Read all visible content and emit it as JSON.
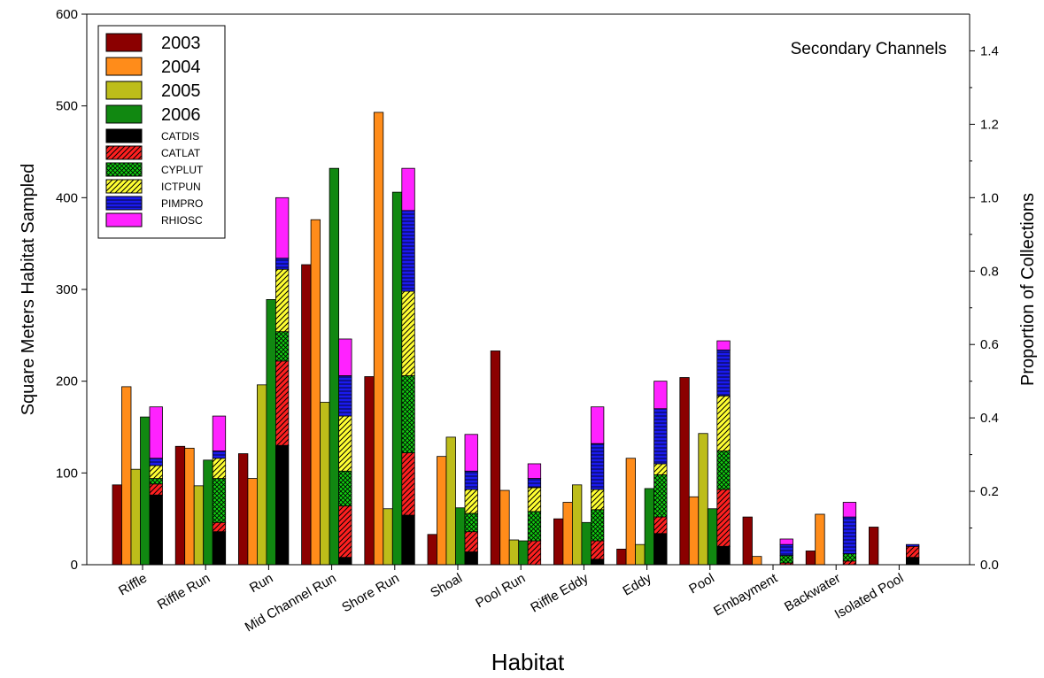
{
  "chart_data": {
    "type": "bar",
    "annotation": "Secondary Channels",
    "xlabel": "Habitat",
    "ylabel": "Square Meters Habitat Sampled",
    "ylabel_right": "Proportion of Collections",
    "ylim": [
      0,
      600
    ],
    "yticks": [
      "0",
      "100",
      "200",
      "300",
      "400",
      "500",
      "600"
    ],
    "ylim_right": [
      0,
      1.5
    ],
    "yticks_right": [
      "0.0",
      "0.2",
      "0.4",
      "0.6",
      "0.8",
      "1.0",
      "1.2",
      "1.4"
    ],
    "categories": [
      "Riffle",
      "Riffle Run",
      "Run",
      "Mid Channel Run",
      "Shore Run",
      "Shoal",
      "Pool Run",
      "Riffle Eddy",
      "Eddy",
      "Pool",
      "Embayment",
      "Backwater",
      "Isolated Pool"
    ],
    "series": [
      {
        "name": "2003",
        "axis": "left",
        "color": "#8b0000",
        "values": [
          87,
          129,
          121,
          327,
          205,
          33,
          233,
          50,
          17,
          204,
          52,
          15,
          41
        ]
      },
      {
        "name": "2004",
        "axis": "left",
        "color": "#ff8c1a",
        "values": [
          194,
          127,
          94,
          376,
          493,
          118,
          81,
          68,
          116,
          74,
          9,
          55,
          0
        ]
      },
      {
        "name": "2005",
        "axis": "left",
        "color": "#bdbd1a",
        "values": [
          104,
          86,
          196,
          177,
          61,
          139,
          27,
          87,
          22,
          143,
          0,
          0,
          0
        ]
      },
      {
        "name": "2006",
        "axis": "left",
        "color": "#118811",
        "values": [
          161,
          114,
          289,
          432,
          406,
          62,
          26,
          46,
          83,
          61,
          0,
          0,
          0
        ]
      }
    ],
    "stacked_series": [
      {
        "name": "CATDIS",
        "axis": "right",
        "color": "#000000",
        "pattern": "solid",
        "values": [
          0.19,
          0.09,
          0.325,
          0.02,
          0.135,
          0.035,
          0,
          0.015,
          0.085,
          0.05,
          0,
          0,
          0.02
        ]
      },
      {
        "name": "CATLAT",
        "axis": "right",
        "color": "#ff2020",
        "pattern": "diag",
        "values": [
          0.03,
          0.025,
          0.23,
          0.14,
          0.17,
          0.055,
          0.065,
          0.05,
          0.045,
          0.155,
          0.005,
          0.01,
          0.03
        ]
      },
      {
        "name": "CYPLUT",
        "axis": "right",
        "color": "#11cc11",
        "pattern": "cross",
        "values": [
          0.015,
          0.12,
          0.08,
          0.095,
          0.21,
          0.05,
          0.08,
          0.085,
          0.115,
          0.105,
          0.02,
          0.02,
          0
        ]
      },
      {
        "name": "ICTPUN",
        "axis": "right",
        "color": "#ffff33",
        "pattern": "diag",
        "values": [
          0.035,
          0.055,
          0.17,
          0.15,
          0.23,
          0.065,
          0.065,
          0.055,
          0.03,
          0.15,
          0,
          0,
          0
        ]
      },
      {
        "name": "PIMPRO",
        "axis": "right",
        "color": "#1a1aee",
        "pattern": "horiz",
        "values": [
          0.02,
          0.02,
          0.03,
          0.11,
          0.22,
          0.05,
          0.025,
          0.125,
          0.15,
          0.125,
          0.03,
          0.1,
          0.005
        ]
      },
      {
        "name": "RHIOSC",
        "axis": "right",
        "color": "#ff22ff",
        "pattern": "solid",
        "values": [
          0.14,
          0.095,
          0.165,
          0.1,
          0.115,
          0.1,
          0.04,
          0.1,
          0.075,
          0.025,
          0.015,
          0.04,
          0
        ]
      }
    ],
    "legend_position": "top-left",
    "grid": false
  }
}
